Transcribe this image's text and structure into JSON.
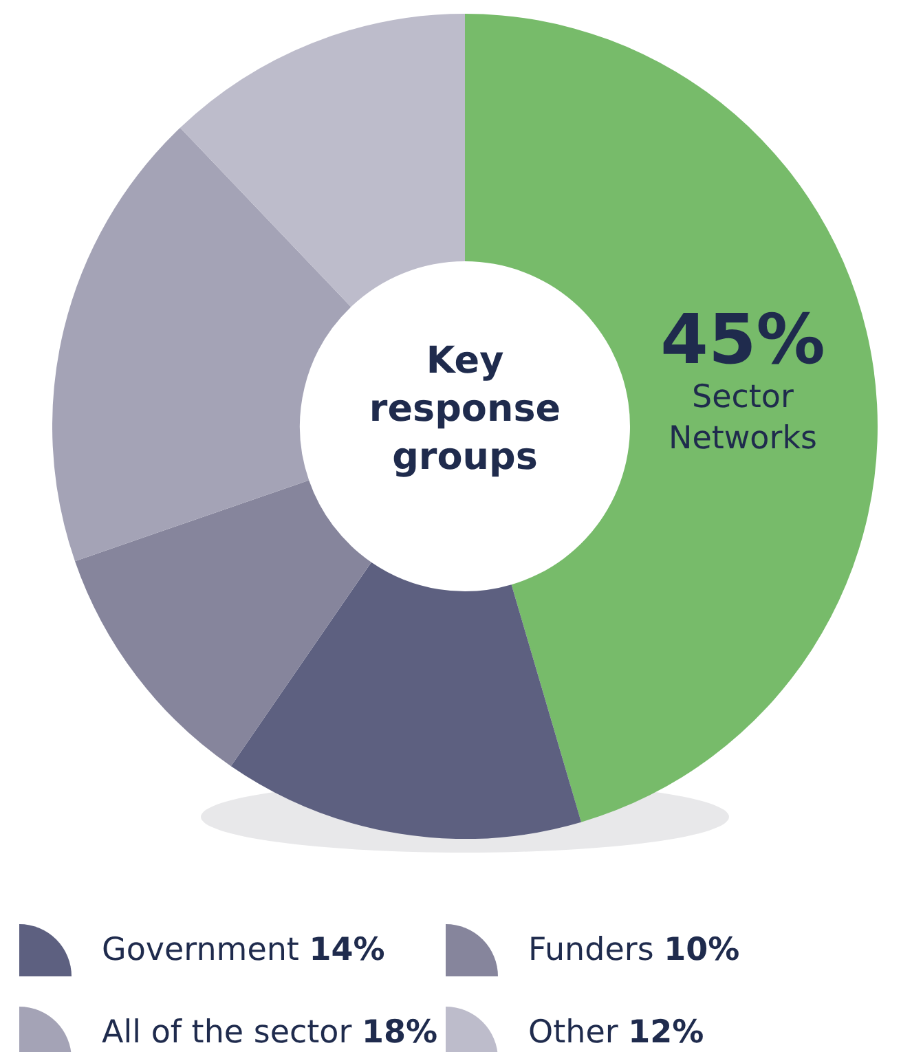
{
  "chart_data": {
    "type": "donut",
    "title": "Key response groups",
    "categories": [
      "Sector Networks",
      "Government",
      "Funders",
      "All of the sector",
      "Other"
    ],
    "values": [
      45,
      14,
      10,
      18,
      12
    ],
    "value_labels": [
      "45%",
      "14%",
      "10%",
      "18%",
      "12%"
    ],
    "colors": [
      "#77bb6a",
      "#5d6080",
      "#86859c",
      "#a4a3b6",
      "#bdbccb"
    ],
    "legend": "bottom"
  }
}
